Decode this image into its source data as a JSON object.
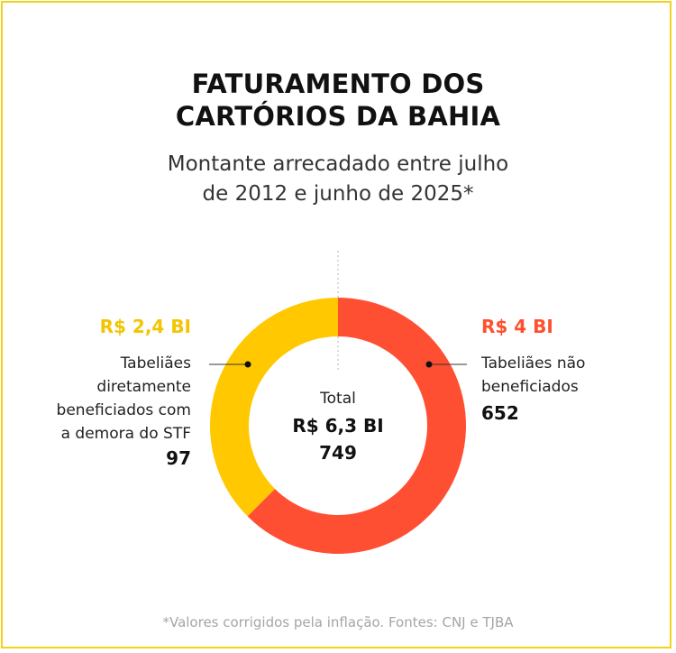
{
  "title_lines": [
    "FATURAMENTO DOS",
    "CARTÓRIOS DA BAHIA"
  ],
  "subtitle_lines": [
    "Montante arrecadado entre julho",
    "de 2012 e junho de 2025*"
  ],
  "footnote": "*Valores corrigidos pela inflação. Fontes: CNJ e TJBA",
  "colors": {
    "border": "#f2d21b",
    "beneficiados": "#ffc800",
    "nao_beneficiados": "#ff4f33"
  },
  "chart_data": {
    "type": "pie",
    "style": "donut",
    "unit": "R$ bilhões",
    "title": "FATURAMENTO DOS CARTÓRIOS DA BAHIA",
    "subtitle": "Montante arrecadado entre julho de 2012 e junho de 2025*",
    "total": {
      "label": "Total",
      "value_label": "R$ 6,3 BI",
      "value": 6.3,
      "count": "749"
    },
    "slices": [
      {
        "key": "nao_beneficiados",
        "value": 4.0,
        "value_label": "R$ 4 BI",
        "description_lines": [
          "Tabeliães não",
          "beneficiados"
        ],
        "count": "652",
        "color": "#ff4f33"
      },
      {
        "key": "beneficiados",
        "value": 2.4,
        "value_label": "R$ 2,4 BI",
        "description_lines": [
          "Tabeliães",
          "diretamente",
          "beneficiados com",
          "a demora do STF"
        ],
        "count": "97",
        "color": "#ffc800"
      }
    ]
  }
}
